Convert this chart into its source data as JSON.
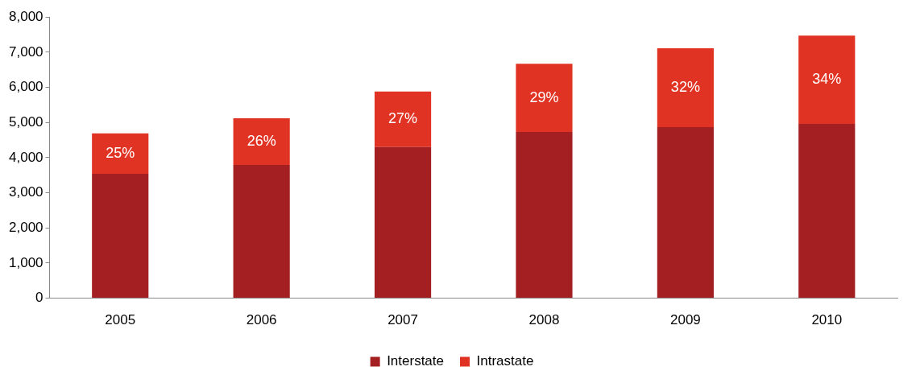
{
  "chart_data": {
    "type": "bar",
    "stacked": true,
    "categories": [
      "2005",
      "2006",
      "2007",
      "2008",
      "2009",
      "2010"
    ],
    "series": [
      {
        "name": "Interstate",
        "color": "#a31f21",
        "values": [
          3540,
          3790,
          4300,
          4730,
          4870,
          4960
        ]
      },
      {
        "name": "Intrastate",
        "color": "#e03323",
        "values": [
          1150,
          1330,
          1580,
          1940,
          2240,
          2510
        ]
      }
    ],
    "annotations": [
      "25%",
      "26%",
      "27%",
      "29%",
      "32%",
      "34%"
    ],
    "ylim": [
      0,
      8000
    ],
    "yticks": [
      {
        "value": 0,
        "label": "0"
      },
      {
        "value": 1000,
        "label": "1,000"
      },
      {
        "value": 2000,
        "label": "2,000"
      },
      {
        "value": 3000,
        "label": "3,000"
      },
      {
        "value": 4000,
        "label": "4,000"
      },
      {
        "value": 5000,
        "label": "5,000"
      },
      {
        "value": 6000,
        "label": "6,000"
      },
      {
        "value": 7000,
        "label": "7,000"
      },
      {
        "value": 8000,
        "label": "8,000"
      }
    ],
    "grid": false,
    "legend": "bottom"
  }
}
